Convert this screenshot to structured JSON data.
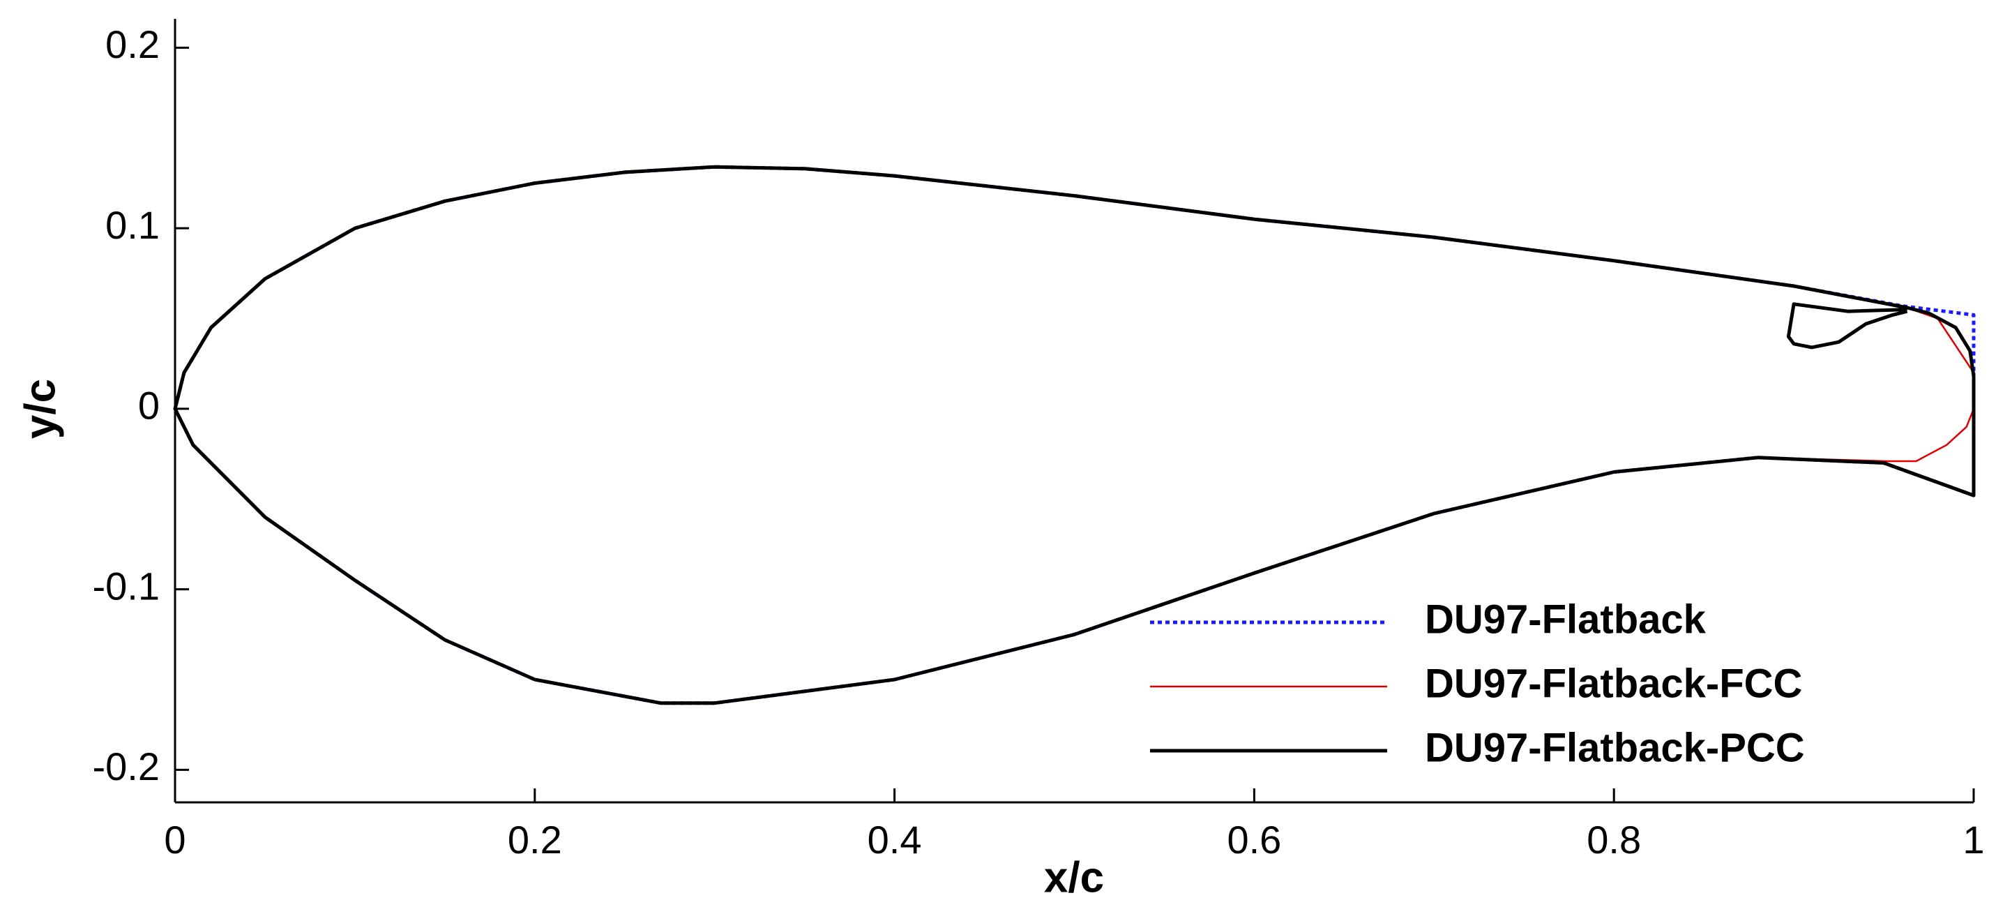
{
  "chart_data": {
    "type": "line",
    "xlabel": "x/c",
    "ylabel": "y/c",
    "xlim": [
      0,
      1
    ],
    "xticks": [
      0,
      0.2,
      0.4,
      0.6,
      0.8,
      1
    ],
    "ylim": [
      -0.218,
      0.216
    ],
    "yticks": [
      -0.2,
      -0.1,
      0,
      0.1,
      0.2
    ],
    "legend": "lower right",
    "series": [
      {
        "name": "DU97-Flatback",
        "color": "#1a1aff",
        "linestyle": "dotted",
        "x": [
          1,
          1,
          0.96,
          0.9,
          0.8,
          0.7,
          0.6,
          0.5,
          0.4,
          0.35,
          0.3,
          0.25,
          0.2,
          0.15,
          0.1,
          0.05,
          0.02,
          0.005,
          0,
          0.01,
          0.05,
          0.1,
          0.15,
          0.2,
          0.27,
          0.3,
          0.4,
          0.5,
          0.6,
          0.7,
          0.8,
          0.88,
          0.95,
          1,
          1
        ],
        "y": [
          0.021,
          0.052,
          0.057,
          0.068,
          0.082,
          0.095,
          0.105,
          0.118,
          0.129,
          0.133,
          0.134,
          0.131,
          0.125,
          0.115,
          0.1,
          0.072,
          0.045,
          0.02,
          0,
          -0.02,
          -0.06,
          -0.095,
          -0.128,
          -0.15,
          -0.163,
          -0.163,
          -0.15,
          -0.125,
          -0.091,
          -0.058,
          -0.035,
          -0.027,
          -0.03,
          -0.048,
          0.021
        ]
      },
      {
        "name": "DU97-Flatback-FCC",
        "color": "#e00000",
        "linestyle": "solid",
        "x": [
          0.952,
          0.968,
          0.985,
          0.996,
          1,
          1,
          0.98,
          0.96,
          0.9,
          0.8,
          0.7,
          0.6,
          0.5,
          0.4,
          0.35,
          0.3,
          0.25,
          0.2,
          0.15,
          0.1,
          0.05,
          0.02,
          0.005,
          0,
          0.01,
          0.05,
          0.1,
          0.15,
          0.2,
          0.27,
          0.3,
          0.4,
          0.5,
          0.6,
          0.7,
          0.8,
          0.88,
          0.952
        ],
        "y": [
          -0.029,
          -0.029,
          -0.02,
          -0.01,
          0,
          0.02,
          0.05,
          0.057,
          0.068,
          0.082,
          0.095,
          0.105,
          0.118,
          0.129,
          0.133,
          0.134,
          0.131,
          0.125,
          0.115,
          0.1,
          0.072,
          0.045,
          0.02,
          0,
          -0.02,
          -0.06,
          -0.095,
          -0.128,
          -0.15,
          -0.163,
          -0.163,
          -0.15,
          -0.125,
          -0.091,
          -0.058,
          -0.035,
          -0.027,
          -0.029
        ]
      },
      {
        "name": "DU97-Flatback-PCC",
        "color": "#000000",
        "linestyle": "solid",
        "x": [
          1,
          0.998,
          0.99,
          0.975,
          0.963,
          0.9,
          0.8,
          0.7,
          0.6,
          0.5,
          0.4,
          0.35,
          0.3,
          0.25,
          0.2,
          0.15,
          0.1,
          0.05,
          0.02,
          0.005,
          0,
          0.01,
          0.05,
          0.1,
          0.15,
          0.2,
          0.27,
          0.3,
          0.4,
          0.5,
          0.6,
          0.7,
          0.8,
          0.88,
          0.95,
          1,
          1,
          null,
          0.963,
          0.93,
          0.9,
          0.897,
          0.9,
          0.91,
          0.925,
          0.94,
          0.955,
          0.963
        ],
        "y": [
          0.018,
          0.032,
          0.045,
          0.053,
          0.056,
          0.068,
          0.082,
          0.095,
          0.105,
          0.118,
          0.129,
          0.133,
          0.134,
          0.131,
          0.125,
          0.115,
          0.1,
          0.072,
          0.045,
          0.02,
          0,
          -0.02,
          -0.06,
          -0.095,
          -0.128,
          -0.15,
          -0.163,
          -0.163,
          -0.15,
          -0.125,
          -0.091,
          -0.058,
          -0.035,
          -0.027,
          -0.03,
          -0.048,
          0.018,
          null,
          0.055,
          0.054,
          0.058,
          0.04,
          0.036,
          0.034,
          0.037,
          0.047,
          0.052,
          0.054
        ]
      }
    ]
  }
}
